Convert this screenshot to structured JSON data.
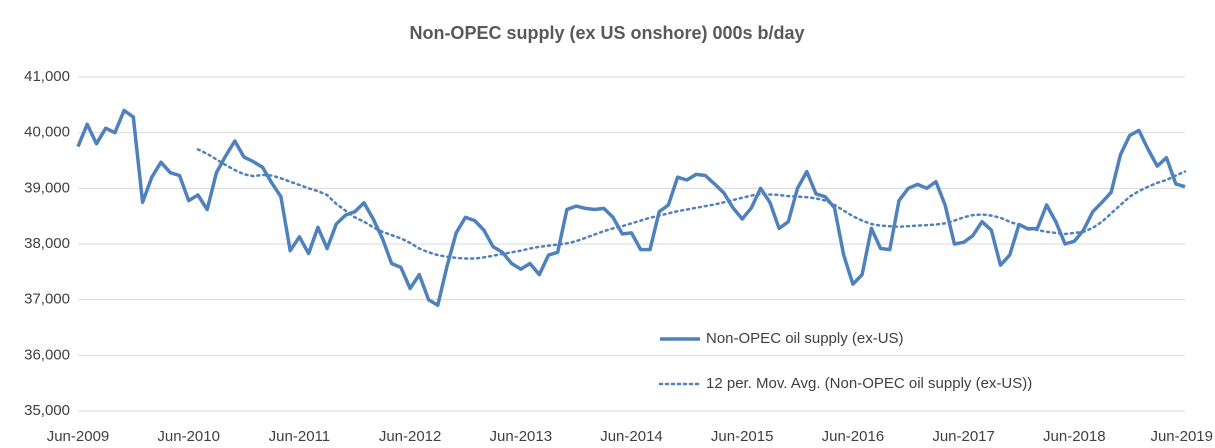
{
  "chart_data": {
    "type": "line",
    "title": "Non-OPEC supply (ex US onshore) 000s b/day",
    "categories": [
      "Jun-2009",
      null,
      null,
      null,
      null,
      null,
      null,
      null,
      null,
      null,
      null,
      null,
      "Jun-2010",
      null,
      null,
      null,
      null,
      null,
      null,
      null,
      null,
      null,
      null,
      null,
      "Jun-2011",
      null,
      null,
      null,
      null,
      null,
      null,
      null,
      null,
      null,
      null,
      null,
      "Jun-2012",
      null,
      null,
      null,
      null,
      null,
      null,
      null,
      null,
      null,
      null,
      null,
      "Jun-2013",
      null,
      null,
      null,
      null,
      null,
      null,
      null,
      null,
      null,
      null,
      null,
      "Jun-2014",
      null,
      null,
      null,
      null,
      null,
      null,
      null,
      null,
      null,
      null,
      null,
      "Jun-2015",
      null,
      null,
      null,
      null,
      null,
      null,
      null,
      null,
      null,
      null,
      null,
      "Jun-2016",
      null,
      null,
      null,
      null,
      null,
      null,
      null,
      null,
      null,
      null,
      null,
      "Jun-2017",
      null,
      null,
      null,
      null,
      null,
      null,
      null,
      null,
      null,
      null,
      null,
      "Jun-2018",
      null,
      null,
      null,
      null,
      null,
      null,
      null,
      null,
      null,
      null,
      null,
      "Jun-2019"
    ],
    "series": [
      {
        "name": "Non-OPEC oil supply (ex-US)",
        "color": "#4f81bd",
        "style": "solid",
        "values": [
          39750,
          40150,
          39800,
          40080,
          40000,
          40400,
          40280,
          38750,
          39200,
          39470,
          39280,
          39230,
          38780,
          38880,
          38620,
          39280,
          39580,
          39850,
          39560,
          39480,
          39380,
          39100,
          38850,
          37880,
          38130,
          37830,
          38300,
          37920,
          38360,
          38520,
          38580,
          38740,
          38450,
          38100,
          37650,
          37580,
          37200,
          37450,
          37000,
          36900,
          37600,
          38200,
          38480,
          38420,
          38250,
          37950,
          37850,
          37650,
          37550,
          37650,
          37450,
          37800,
          37850,
          38620,
          38680,
          38640,
          38620,
          38640,
          38480,
          38180,
          38200,
          37900,
          37900,
          38580,
          38700,
          39200,
          39150,
          39250,
          39230,
          39080,
          38920,
          38650,
          38450,
          38650,
          39000,
          38750,
          38280,
          38400,
          39000,
          39300,
          38900,
          38850,
          38650,
          37800,
          37280,
          37450,
          38280,
          37920,
          37900,
          38780,
          39000,
          39070,
          39000,
          39120,
          38700,
          38000,
          38030,
          38150,
          38400,
          38250,
          37620,
          37800,
          38350,
          38270,
          38280,
          38700,
          38400,
          38000,
          38050,
          38250,
          38580,
          38750,
          38930,
          39600,
          39950,
          40040,
          39700,
          39400,
          39550,
          39080,
          39030
        ]
      },
      {
        "name": "12 per. Mov. Avg. (Non-OPEC oil supply (ex-US))",
        "color": "#4f81bd",
        "style": "dotted",
        "values": [
          null,
          null,
          null,
          null,
          null,
          null,
          null,
          null,
          null,
          null,
          null,
          null,
          null,
          39700,
          39620,
          39520,
          39420,
          39330,
          39250,
          39220,
          39240,
          39230,
          39180,
          39120,
          39060,
          39000,
          38950,
          38880,
          38720,
          38600,
          38480,
          38400,
          38300,
          38220,
          38160,
          38100,
          38020,
          37920,
          37850,
          37800,
          37770,
          37750,
          37740,
          37740,
          37760,
          37790,
          37820,
          37850,
          37880,
          37920,
          37950,
          37970,
          37990,
          38010,
          38050,
          38110,
          38170,
          38230,
          38280,
          38320,
          38370,
          38420,
          38470,
          38510,
          38550,
          38590,
          38620,
          38650,
          38680,
          38710,
          38750,
          38790,
          38830,
          38870,
          38900,
          38890,
          38880,
          38860,
          38850,
          38840,
          38820,
          38780,
          38700,
          38600,
          38500,
          38420,
          38360,
          38330,
          38320,
          38310,
          38320,
          38330,
          38340,
          38350,
          38370,
          38420,
          38480,
          38520,
          38530,
          38510,
          38470,
          38400,
          38340,
          38290,
          38250,
          38220,
          38200,
          38180,
          38200,
          38220,
          38290,
          38400,
          38550,
          38700,
          38850,
          38950,
          39030,
          39100,
          39150,
          39230,
          39300
        ]
      }
    ],
    "ylim": [
      35000,
      41000
    ],
    "yticks": [
      {
        "value": 35000,
        "label": "35,000"
      },
      {
        "value": 36000,
        "label": "36,000"
      },
      {
        "value": 37000,
        "label": "37,000"
      },
      {
        "value": 38000,
        "label": "38,000"
      },
      {
        "value": 39000,
        "label": "39,000"
      },
      {
        "value": 40000,
        "label": "40,000"
      },
      {
        "value": 41000,
        "label": "41,000"
      }
    ],
    "grid": true,
    "legend": "lower right"
  }
}
